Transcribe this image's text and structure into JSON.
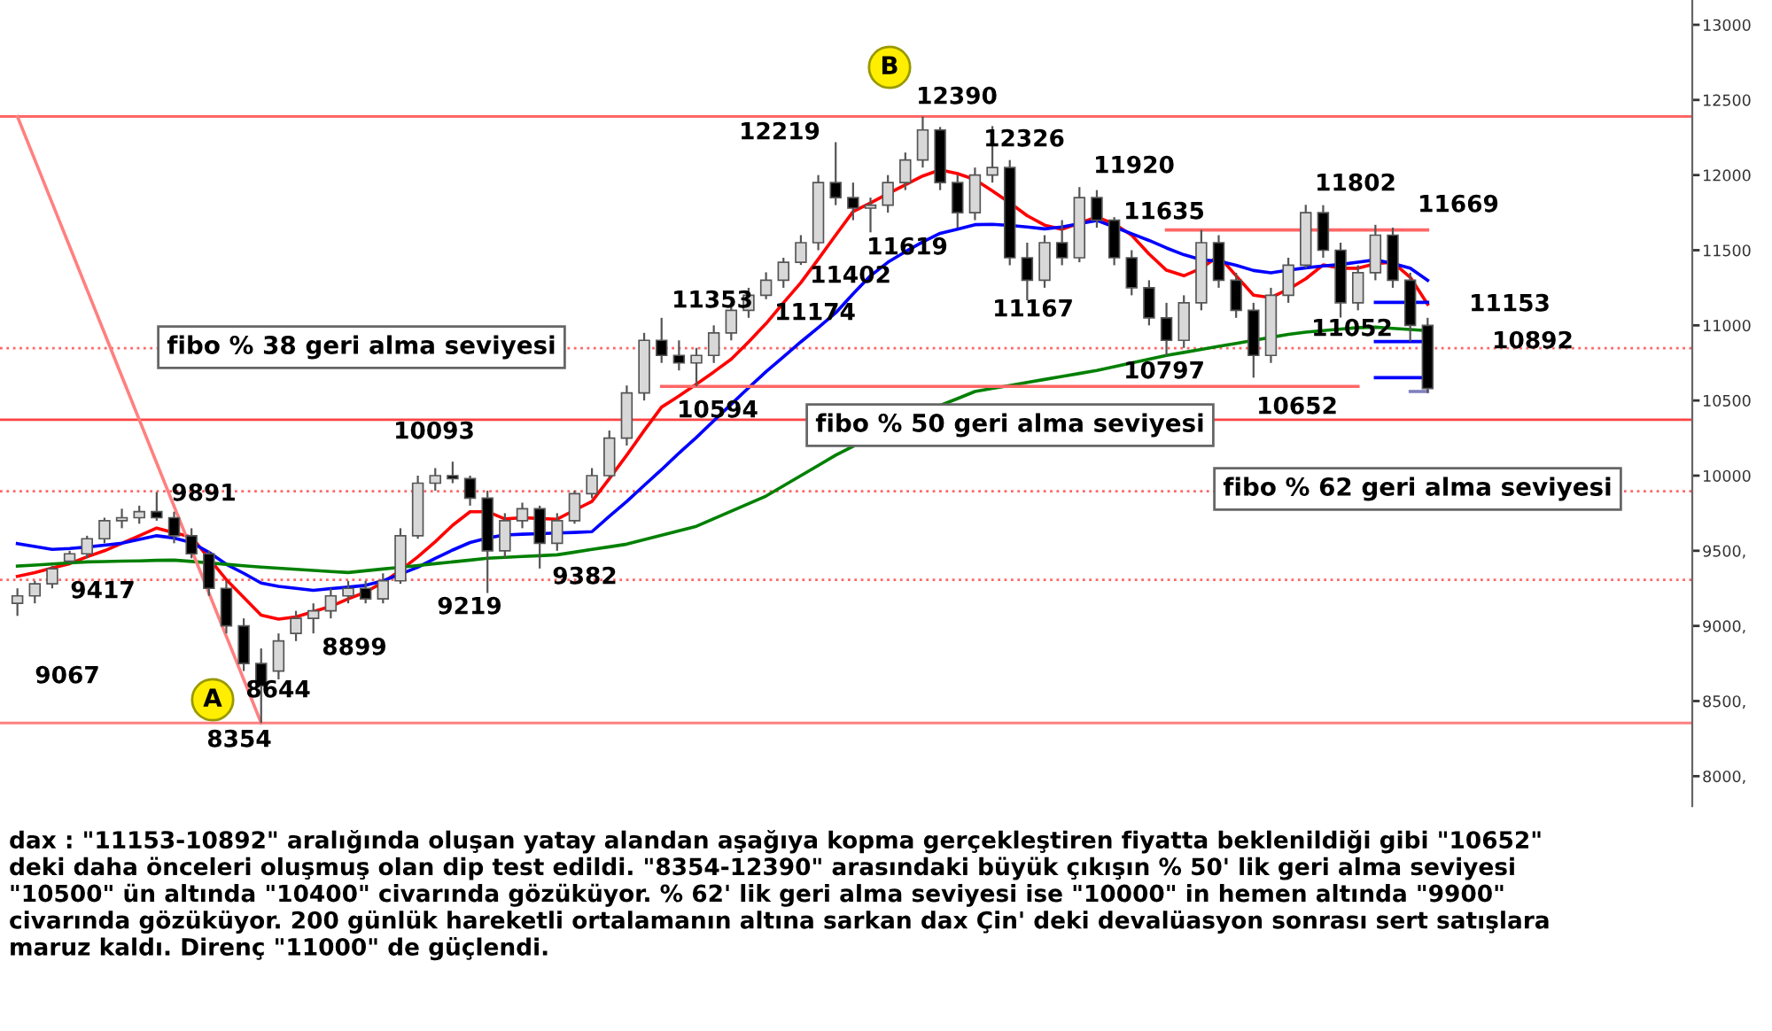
{
  "chart_data": {
    "type": "candlestick",
    "categories": [
      null,
      null,
      null,
      null,
      null,
      null,
      null,
      null,
      null,
      null,
      null,
      null,
      null,
      null,
      null,
      null,
      null,
      null,
      null,
      null,
      null,
      null,
      null,
      null,
      null,
      null,
      null,
      null,
      null,
      null,
      null,
      null,
      null,
      null,
      null,
      null,
      null,
      null,
      null,
      null,
      null,
      null,
      null,
      null,
      null,
      null,
      null,
      null,
      null,
      null,
      null,
      null,
      null,
      null,
      null,
      null,
      null,
      null,
      null,
      null,
      null,
      null,
      null,
      null,
      null,
      null,
      null,
      null,
      null,
      null,
      null,
      null,
      null,
      null,
      null,
      null,
      null,
      null,
      null,
      null,
      null,
      null
    ],
    "ohlc": [
      [
        9150,
        9250,
        9067,
        9200
      ],
      [
        9200,
        9300,
        9150,
        9280
      ],
      [
        9280,
        9400,
        9250,
        9380
      ],
      [
        9430,
        9500,
        9417,
        9480
      ],
      [
        9480,
        9600,
        9450,
        9580
      ],
      [
        9580,
        9720,
        9550,
        9700
      ],
      [
        9700,
        9780,
        9650,
        9720
      ],
      [
        9720,
        9800,
        9680,
        9760
      ],
      [
        9760,
        9891,
        9700,
        9720
      ],
      [
        9720,
        9760,
        9550,
        9600
      ],
      [
        9600,
        9650,
        9450,
        9480
      ],
      [
        9480,
        9500,
        9200,
        9250
      ],
      [
        9250,
        9300,
        8950,
        9000
      ],
      [
        9000,
        9050,
        8700,
        8750
      ],
      [
        8750,
        8850,
        8354,
        8600
      ],
      [
        8700,
        8950,
        8644,
        8900
      ],
      [
        8950,
        9100,
        8899,
        9050
      ],
      [
        9050,
        9150,
        8950,
        9100
      ],
      [
        9100,
        9250,
        9050,
        9200
      ],
      [
        9200,
        9300,
        9150,
        9250
      ],
      [
        9250,
        9300,
        9150,
        9180
      ],
      [
        9180,
        9350,
        9150,
        9300
      ],
      [
        9300,
        9650,
        9280,
        9600
      ],
      [
        9600,
        10000,
        9580,
        9950
      ],
      [
        9950,
        10050,
        9900,
        10000
      ],
      [
        10000,
        10093,
        9950,
        9980
      ],
      [
        9980,
        10000,
        9800,
        9850
      ],
      [
        9850,
        9900,
        9219,
        9500
      ],
      [
        9500,
        9750,
        9450,
        9700
      ],
      [
        9700,
        9820,
        9650,
        9780
      ],
      [
        9780,
        9800,
        9382,
        9550
      ],
      [
        9550,
        9750,
        9500,
        9700
      ],
      [
        9700,
        9900,
        9680,
        9880
      ],
      [
        9880,
        10050,
        9850,
        10000
      ],
      [
        10000,
        10300,
        9980,
        10250
      ],
      [
        10250,
        10600,
        10200,
        10550
      ],
      [
        10550,
        10950,
        10500,
        10900
      ],
      [
        10900,
        11050,
        10750,
        10800
      ],
      [
        10800,
        10900,
        10700,
        10750
      ],
      [
        10750,
        10850,
        10594,
        10800
      ],
      [
        10800,
        11000,
        10750,
        10950
      ],
      [
        10950,
        11150,
        10900,
        11100
      ],
      [
        11100,
        11250,
        11050,
        11200
      ],
      [
        11200,
        11353,
        11174,
        11300
      ],
      [
        11300,
        11450,
        11250,
        11420
      ],
      [
        11420,
        11600,
        11402,
        11550
      ],
      [
        11550,
        12000,
        11500,
        11950
      ],
      [
        11950,
        12219,
        11800,
        11850
      ],
      [
        11850,
        11950,
        11700,
        11780
      ],
      [
        11780,
        11850,
        11619,
        11800
      ],
      [
        11800,
        12000,
        11750,
        11950
      ],
      [
        11950,
        12150,
        11900,
        12100
      ],
      [
        12100,
        12390,
        12050,
        12300
      ],
      [
        12300,
        12320,
        11900,
        11950
      ],
      [
        11950,
        12000,
        11650,
        11750
      ],
      [
        11750,
        12050,
        11700,
        12000
      ],
      [
        12000,
        12326,
        11950,
        12050
      ],
      [
        12050,
        12100,
        11400,
        11450
      ],
      [
        11450,
        11550,
        11167,
        11300
      ],
      [
        11300,
        11600,
        11250,
        11550
      ],
      [
        11550,
        11700,
        11400,
        11450
      ],
      [
        11450,
        11920,
        11420,
        11850
      ],
      [
        11850,
        11900,
        11650,
        11700
      ],
      [
        11700,
        11720,
        11400,
        11450
      ],
      [
        11450,
        11500,
        11200,
        11250
      ],
      [
        11250,
        11300,
        11000,
        11050
      ],
      [
        11050,
        11150,
        10797,
        10900
      ],
      [
        10900,
        11200,
        10850,
        11150
      ],
      [
        11150,
        11635,
        11100,
        11550
      ],
      [
        11550,
        11600,
        11250,
        11300
      ],
      [
        11300,
        11350,
        11050,
        11100
      ],
      [
        11100,
        11150,
        10652,
        10800
      ],
      [
        10800,
        11250,
        10750,
        11200
      ],
      [
        11200,
        11450,
        11150,
        11400
      ],
      [
        11400,
        11802,
        11380,
        11750
      ],
      [
        11750,
        11800,
        11450,
        11500
      ],
      [
        11500,
        11550,
        11052,
        11150
      ],
      [
        11150,
        11400,
        11100,
        11350
      ],
      [
        11350,
        11669,
        11300,
        11600
      ],
      [
        11600,
        11650,
        11250,
        11300
      ],
      [
        11300,
        11350,
        10892,
        11000
      ],
      [
        11000,
        11050,
        10550,
        10580
      ]
    ],
    "series": [
      {
        "type": "line",
        "color": "#ff0000",
        "values": [
          9330,
          9355,
          9385,
          9414,
          9460,
          9500,
          9550,
          9600,
          9651,
          9620,
          9592,
          9450,
          9308,
          9190,
          9071,
          9045,
          9060,
          9095,
          9130,
          9180,
          9225,
          9290,
          9370,
          9460,
          9560,
          9670,
          9760,
          9760,
          9712,
          9720,
          9715,
          9710,
          9770,
          9828,
          9980,
          10136,
          10300,
          10456,
          10530,
          10609,
          10690,
          10775,
          10890,
          11012,
          11150,
          11284,
          11440,
          11600,
          11757,
          11815,
          11876,
          11935,
          11994,
          12035,
          12010,
          11970,
          11895,
          11815,
          11730,
          11667,
          11639,
          11680,
          11722,
          11675,
          11600,
          11475,
          11367,
          11330,
          11380,
          11462,
          11330,
          11201,
          11185,
          11240,
          11310,
          11402,
          11380,
          11380,
          11410,
          11420,
          11320,
          11140
        ]
      },
      {
        "type": "line",
        "color": "#0000ff",
        "values": [
          9548,
          9528,
          9509,
          9515,
          9525,
          9537,
          9550,
          9575,
          9600,
          9585,
          9555,
          9490,
          9410,
          9350,
          9285,
          9263,
          9250,
          9237,
          9248,
          9258,
          9270,
          9300,
          9345,
          9391,
          9450,
          9505,
          9555,
          9585,
          9605,
          9610,
          9614,
          9618,
          9622,
          9627,
          9730,
          9828,
          9935,
          10040,
          10150,
          10254,
          10365,
          10475,
          10585,
          10692,
          10790,
          10890,
          10985,
          11083,
          11210,
          11330,
          11420,
          11490,
          11555,
          11612,
          11640,
          11670,
          11672,
          11665,
          11655,
          11642,
          11655,
          11677,
          11698,
          11655,
          11610,
          11565,
          11515,
          11470,
          11436,
          11428,
          11400,
          11365,
          11350,
          11367,
          11383,
          11395,
          11405,
          11420,
          11436,
          11412,
          11380,
          11300
        ]
      },
      {
        "type": "line",
        "color": "#008000",
        "values": [
          9398,
          9405,
          9412,
          9419,
          9426,
          9428,
          9431,
          9433,
          9436,
          9438,
          9429,
          9419,
          9410,
          9400,
          9391,
          9384,
          9377,
          9369,
          9362,
          9355,
          9367,
          9379,
          9390,
          9402,
          9414,
          9426,
          9438,
          9450,
          9456,
          9462,
          9467,
          9473,
          9491,
          9509,
          9526,
          9544,
          9574,
          9604,
          9633,
          9663,
          9713,
          9764,
          9814,
          9864,
          9932,
          10000,
          10068,
          10136,
          10195,
          null,
          null,
          null,
          null,
          10467,
          10513,
          10560,
          10580,
          10600,
          10620,
          10640,
          10660,
          10680,
          10700,
          10725,
          10750,
          10775,
          10800,
          10820,
          10840,
          10860,
          10880,
          10900,
          10920,
          10940,
          10955,
          10965,
          10975,
          10985,
          10988,
          10980,
          10972,
          10964
        ]
      },
      {
        "type": "line",
        "color": "#ff8080",
        "values": [
          12390,
          12102,
          11813,
          11525,
          11237,
          10949,
          10660,
          10372,
          10084,
          9796,
          9507,
          9219,
          8931,
          8643,
          8354,
          null,
          null,
          null,
          null,
          null,
          null,
          null,
          null,
          null,
          null,
          null,
          null,
          null,
          null,
          null,
          null,
          null,
          null,
          null,
          null,
          null,
          null,
          null,
          null,
          null,
          null,
          null,
          null,
          null,
          null,
          null,
          null,
          null,
          null,
          null,
          null,
          null,
          null,
          null,
          null,
          null,
          null,
          null,
          null,
          null,
          null,
          null,
          null,
          null,
          null,
          null,
          null,
          null,
          null,
          null,
          null,
          null,
          null,
          null,
          null,
          null,
          null,
          null,
          null,
          null,
          null,
          null
        ]
      },
      {
        "type": "line",
        "color": "#ff6666",
        "values": [
          null,
          null,
          null,
          null,
          null,
          null,
          null,
          null,
          null,
          null,
          null,
          null,
          null,
          null,
          null,
          null,
          null,
          null,
          null,
          null,
          null,
          null,
          null,
          null,
          null,
          null,
          null,
          null,
          null,
          null,
          null,
          null,
          null,
          null,
          null,
          null,
          null,
          null,
          null,
          null,
          null,
          null,
          null,
          null,
          null,
          null,
          null,
          null,
          null,
          null,
          null,
          null,
          null,
          null,
          null,
          null,
          null,
          null,
          null,
          null,
          null,
          null,
          null,
          null,
          null,
          null,
          11635,
          11635,
          11635,
          11635,
          11635,
          11635,
          11635,
          11635,
          11635,
          11635,
          11635,
          11635,
          11635,
          11635,
          11635,
          11635
        ]
      },
      {
        "type": "line",
        "color": "#ff6666",
        "values": [
          null,
          null,
          null,
          null,
          null,
          null,
          null,
          null,
          null,
          null,
          null,
          null,
          null,
          null,
          null,
          null,
          null,
          null,
          null,
          null,
          null,
          null,
          null,
          null,
          null,
          null,
          null,
          null,
          null,
          null,
          null,
          null,
          null,
          null,
          null,
          null,
          null,
          10594,
          10594,
          10594,
          10594,
          10594,
          10594,
          10594,
          10594,
          10594,
          10594,
          10594,
          10594,
          10594,
          10594,
          10594,
          10594,
          10594,
          10594,
          10594,
          10594,
          10594,
          10594,
          10594,
          10594,
          10594,
          10594,
          10594,
          10594,
          10594,
          10594,
          10594,
          10594,
          10594,
          10594,
          10594,
          10594,
          10594,
          10594,
          10594,
          10594,
          10594,
          null,
          null,
          null,
          null
        ]
      },
      {
        "type": "line",
        "color": "#8080c0",
        "values": [
          null,
          null,
          null,
          null,
          null,
          null,
          null,
          null,
          null,
          null,
          null,
          null,
          null,
          null,
          null,
          null,
          null,
          null,
          null,
          null,
          null,
          null,
          null,
          null,
          null,
          null,
          null,
          null,
          null,
          null,
          null,
          null,
          null,
          null,
          null,
          null,
          null,
          null,
          null,
          null,
          null,
          null,
          null,
          null,
          null,
          null,
          null,
          null,
          null,
          null,
          null,
          null,
          null,
          null,
          null,
          null,
          null,
          null,
          null,
          null,
          null,
          null,
          null,
          null,
          null,
          null,
          null,
          null,
          null,
          null,
          null,
          null,
          null,
          null,
          null,
          null,
          null,
          null,
          null,
          null,
          10560,
          10560
        ]
      },
      {
        "type": "line",
        "color": "#0000ff",
        "values": [
          null,
          null,
          null,
          null,
          null,
          null,
          null,
          null,
          null,
          null,
          null,
          null,
          null,
          null,
          null,
          null,
          null,
          null,
          null,
          null,
          null,
          null,
          null,
          null,
          null,
          null,
          null,
          null,
          null,
          null,
          null,
          null,
          null,
          null,
          null,
          null,
          null,
          null,
          null,
          null,
          null,
          null,
          null,
          null,
          null,
          null,
          null,
          null,
          null,
          null,
          null,
          null,
          null,
          null,
          null,
          null,
          null,
          null,
          null,
          null,
          null,
          null,
          null,
          null,
          null,
          null,
          null,
          null,
          null,
          null,
          null,
          null,
          null,
          null,
          null,
          null,
          null,
          null,
          11153,
          11153,
          11153,
          11153
        ]
      },
      {
        "type": "line",
        "color": "#0000ff",
        "values": [
          null,
          null,
          null,
          null,
          null,
          null,
          null,
          null,
          null,
          null,
          null,
          null,
          null,
          null,
          null,
          null,
          null,
          null,
          null,
          null,
          null,
          null,
          null,
          null,
          null,
          null,
          null,
          null,
          null,
          null,
          null,
          null,
          null,
          null,
          null,
          null,
          null,
          null,
          null,
          null,
          null,
          null,
          null,
          null,
          null,
          null,
          null,
          null,
          null,
          null,
          null,
          null,
          null,
          null,
          null,
          null,
          null,
          null,
          null,
          null,
          null,
          null,
          null,
          null,
          null,
          null,
          null,
          null,
          null,
          null,
          null,
          null,
          null,
          null,
          null,
          null,
          null,
          null,
          10892,
          10892,
          10892,
          10892
        ]
      },
      {
        "type": "line",
        "color": "#0000ff",
        "values": [
          null,
          null,
          null,
          null,
          null,
          null,
          null,
          null,
          null,
          null,
          null,
          null,
          null,
          null,
          null,
          null,
          null,
          null,
          null,
          null,
          null,
          null,
          null,
          null,
          null,
          null,
          null,
          null,
          null,
          null,
          null,
          null,
          null,
          null,
          null,
          null,
          null,
          null,
          null,
          null,
          null,
          null,
          null,
          null,
          null,
          null,
          null,
          null,
          null,
          null,
          null,
          null,
          null,
          null,
          null,
          null,
          null,
          null,
          null,
          null,
          null,
          null,
          null,
          null,
          null,
          null,
          null,
          null,
          null,
          null,
          null,
          null,
          null,
          null,
          null,
          null,
          null,
          null,
          10652,
          10652,
          10652,
          10652
        ]
      }
    ],
    "ref_lines": [
      {
        "axis": "y",
        "value": 12390,
        "color": "#ff6666",
        "line_style": "solid"
      },
      {
        "axis": "y",
        "value": 8354,
        "color": "#ff8080",
        "line_style": "solid"
      },
      {
        "axis": "y",
        "value": 10372,
        "color": "#ff4444",
        "line_style": "solid"
      },
      {
        "axis": "y",
        "value": 10848,
        "color": "#ff6666",
        "line_style": "dotted"
      },
      {
        "axis": "y",
        "value": 9896,
        "color": "#ff6666",
        "line_style": "dotted"
      },
      {
        "axis": "y",
        "value": 9306,
        "color": "#ff6666",
        "line_style": "dotted"
      }
    ],
    "ylim": [
      7800,
      13165
    ],
    "yticks": [
      {
        "value": 8000,
        "label": "8000,"
      },
      {
        "value": 8500,
        "label": "8500,"
      },
      {
        "value": 9000,
        "label": "9000,"
      },
      {
        "value": 9500,
        "label": "9500,"
      },
      10000,
      10500,
      11000,
      11500,
      12000,
      12500,
      13000
    ],
    "tick_labels": "y",
    "grid": false,
    "legend": false,
    "annotations": [
      "9067",
      "9417",
      "9891",
      "8354",
      "8644",
      "8899",
      "9219",
      "10093",
      "9382",
      "10594",
      "11353",
      "11174",
      "11402",
      "12219",
      "11619",
      "12390",
      "12326",
      "11167",
      "11920",
      "11635",
      "10797",
      "10652",
      "11802",
      "11669",
      "11052",
      "11153",
      "10892",
      "A",
      "B",
      "fibo % 38 geri alma seviyesi",
      "fibo % 50 geri alma seviyesi",
      "fibo % 62 geri alma seviyesi",
      "dax : \"11153-10892\" aralığında oluşan yatay alandan aşağıya kopma gerçekleştiren fiyatta beklenildiği gibi \"10652\"\ndeki daha önceleri oluşmuş olan dip test edildi. \"8354-12390\" arasındaki büyük çıkışın % 50' lik geri alma seviyesi\n\"10500\" ün altında \"10400\" civarında gözüküyor. % 62' lik geri alma seviyesi ise \"10000\" in hemen altında \"9900\"\ncivarında gözüküyor. 200 günlük hareketli ortalamanın altına sarkan dax Çin' deki devalüasyon sonrası sert satışlara\nmaruz kaldı. Direnç \"11000\" de güçlendi."
    ]
  }
}
